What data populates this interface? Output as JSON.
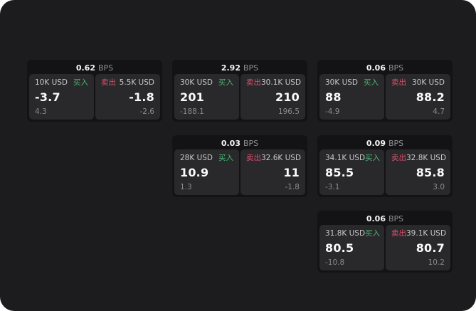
{
  "labels": {
    "bps_suffix": "BPS",
    "buy_tag": "买入",
    "sell_tag": "卖出"
  },
  "colors": {
    "buy": "#4db477",
    "sell": "#d8506d",
    "screen_background": "#1c1c1e",
    "card_background": "#131315",
    "panel_background": "#29292b"
  },
  "cards": [
    {
      "bps": "0.62",
      "buy": {
        "size": "10K USD",
        "price": "-3.7",
        "change": "4.3"
      },
      "sell": {
        "size": "5.5K USD",
        "price": "-1.8",
        "change": "-2.6"
      }
    },
    {
      "bps": "2.92",
      "buy": {
        "size": "30K USD",
        "price": "201",
        "change": "-188.1"
      },
      "sell": {
        "size": "30.1K USD",
        "price": "210",
        "change": "196.5"
      }
    },
    {
      "bps": "0.06",
      "buy": {
        "size": "30K USD",
        "price": "88",
        "change": "-4.9"
      },
      "sell": {
        "size": "30K USD",
        "price": "88.2",
        "change": "4.7"
      }
    },
    {
      "bps": "0.03",
      "buy": {
        "size": "28K USD",
        "price": "10.9",
        "change": "1.3"
      },
      "sell": {
        "size": "32.6K USD",
        "price": "11",
        "change": "-1.8"
      }
    },
    {
      "bps": "0.09",
      "buy": {
        "size": "34.1K USD",
        "price": "85.5",
        "change": "-3.1"
      },
      "sell": {
        "size": "32.8K USD",
        "price": "85.8",
        "change": "3.0"
      }
    },
    {
      "bps": "0.06",
      "buy": {
        "size": "31.8K USD",
        "price": "80.5",
        "change": "-10.8"
      },
      "sell": {
        "size": "39.1K USD",
        "price": "80.7",
        "change": "10.2"
      }
    }
  ]
}
